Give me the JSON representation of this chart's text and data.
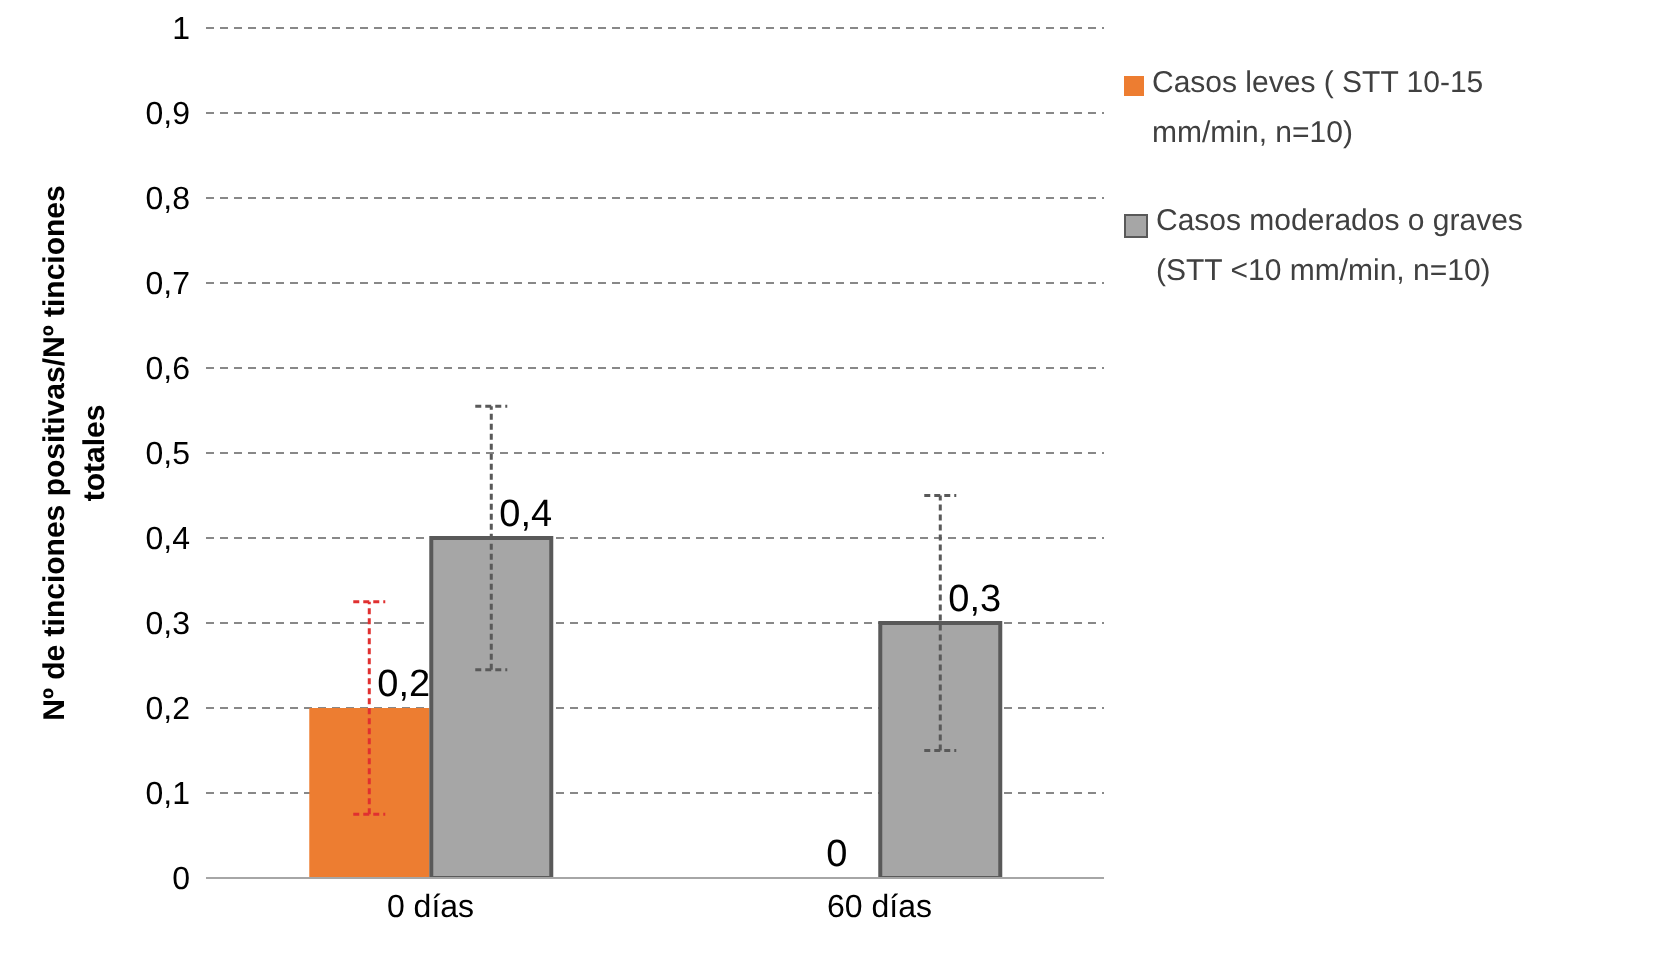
{
  "chart_data": {
    "type": "bar",
    "ylabel": "Nº de tinciones positivas/Nº tinciones totales",
    "categories": [
      "0 días",
      "60 días"
    ],
    "series": [
      {
        "name": "Casos leves ( STT 10-15 mm/min, n=10)",
        "color": "#ed7d31",
        "values": [
          0.2,
          0
        ],
        "errors": [
          0.125,
          null
        ],
        "value_labels": [
          "0,2",
          "0"
        ]
      },
      {
        "name": "Casos moderados o graves (STT <10 mm/min, n=10)",
        "color": "#a6a6a6",
        "values": [
          0.4,
          0.3
        ],
        "errors": [
          0.155,
          0.15
        ],
        "value_labels": [
          "0,4",
          "0,3"
        ]
      }
    ],
    "ylim": [
      0,
      1
    ],
    "yticks": [
      0,
      {
        "value": 0.1,
        "label": "0,1"
      },
      {
        "value": 0.2,
        "label": "0,2"
      },
      {
        "value": 0.3,
        "label": "0,3"
      },
      {
        "value": 0.4,
        "label": "0,4"
      },
      {
        "value": 0.5,
        "label": "0,5"
      },
      {
        "value": 0.6,
        "label": "0,6"
      },
      {
        "value": 0.7,
        "label": "0,7"
      },
      {
        "value": 0.8,
        "label": "0,8"
      },
      {
        "value": 0.9,
        "label": "0,9"
      },
      1
    ],
    "grid": "y",
    "legend": "right"
  }
}
